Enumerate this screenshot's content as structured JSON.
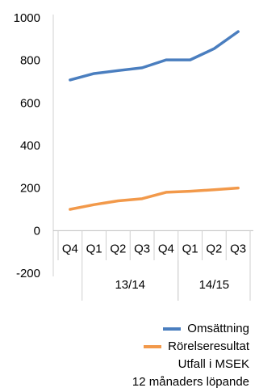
{
  "chart_data": {
    "type": "line",
    "categories": [
      "Q4",
      "Q1",
      "Q2",
      "Q3",
      "Q4",
      "Q1",
      "Q2",
      "Q3"
    ],
    "groups": [
      {
        "label": "13/14"
      },
      {
        "label": "14/15"
      }
    ],
    "series": [
      {
        "name": "Omsättning",
        "color": "#4a7ebf",
        "values": [
          708,
          738,
          752,
          765,
          802,
          802,
          855,
          935
        ]
      },
      {
        "name": "Rörelseresultat",
        "color": "#f2994a",
        "values": [
          100,
          122,
          140,
          150,
          180,
          185,
          192,
          200
        ]
      }
    ],
    "yticks": [
      "1000",
      "800",
      "600",
      "400",
      "200",
      "0",
      "-200"
    ],
    "ylim": [
      -200,
      1000
    ],
    "grid": false,
    "legend_position": "bottom-right"
  },
  "notes": {
    "line1": "Utfall i MSEK",
    "line2": "12 månaders löpande"
  }
}
